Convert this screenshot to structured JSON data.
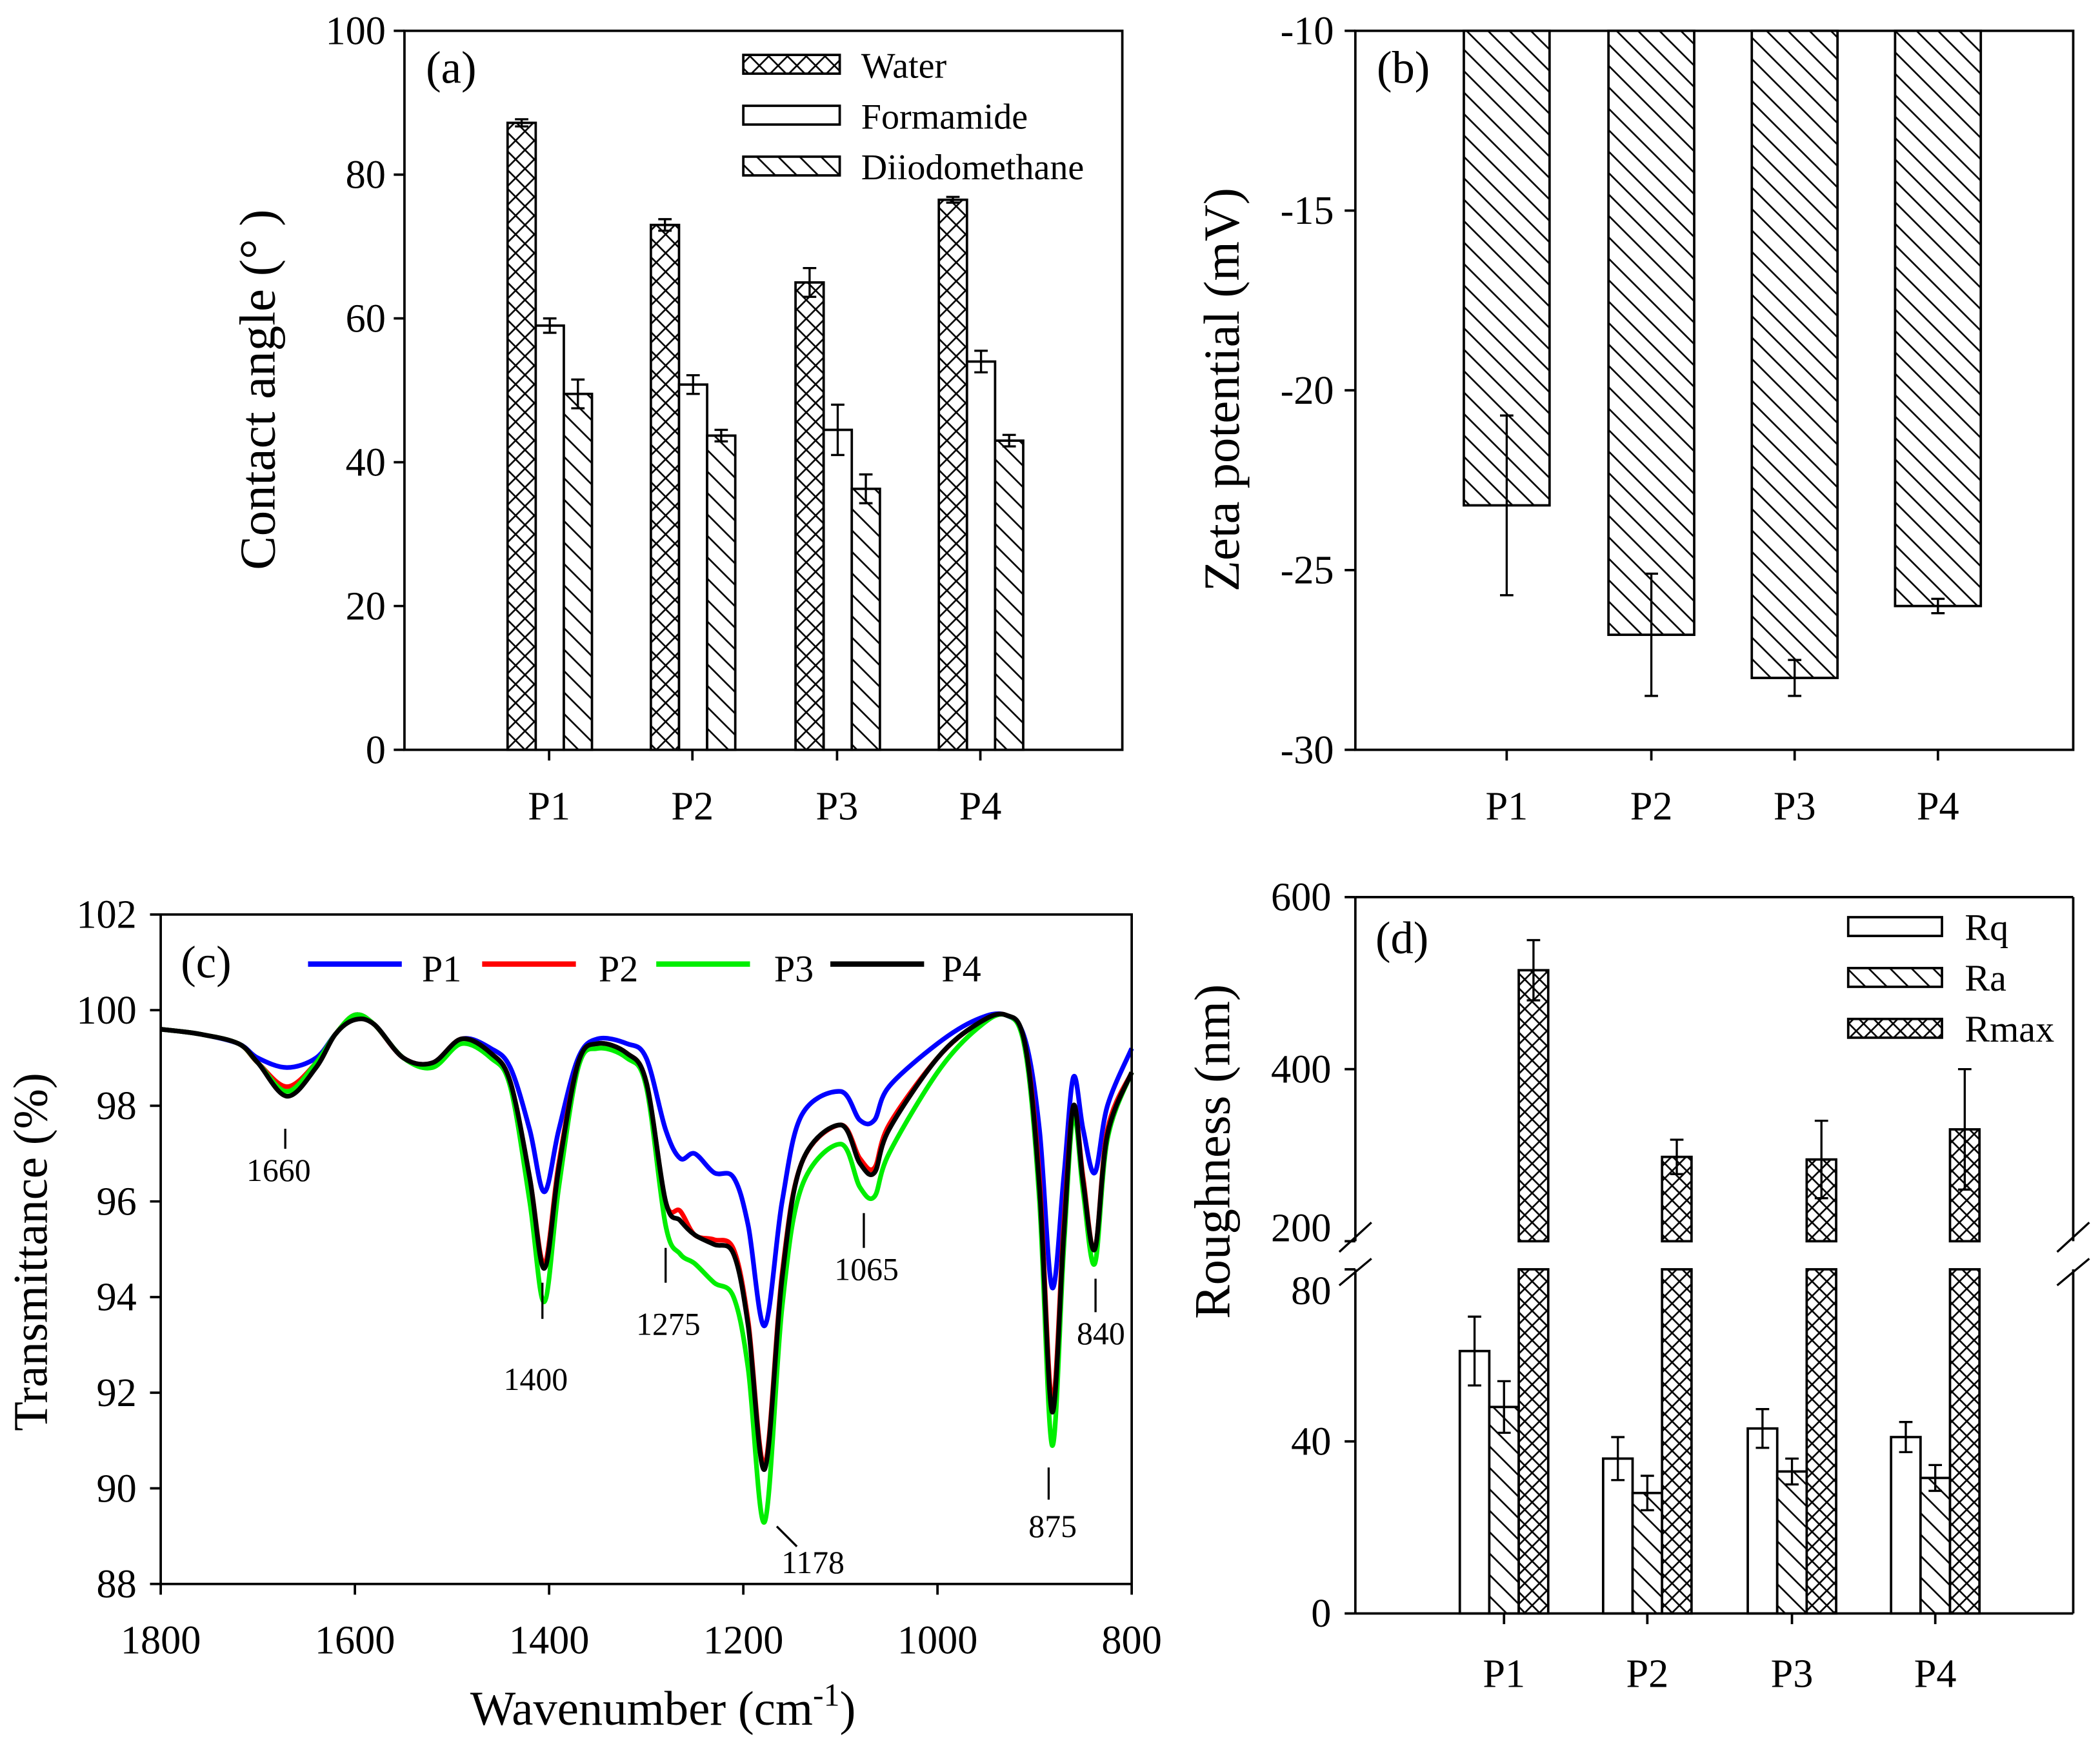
{
  "chart_data": [
    {
      "type": "bar",
      "panel_label": "(a)",
      "ylabel": "Contact angle (° )",
      "ylim": [
        0,
        100
      ],
      "yticks": [
        "0",
        "20",
        "40",
        "60",
        "80",
        "100"
      ],
      "categories": [
        "P1",
        "P2",
        "P3",
        "P4"
      ],
      "legend_position": "top-right",
      "series": [
        {
          "name": "Water",
          "pattern": "crosshatch",
          "values": [
            87.2,
            73.0,
            65.0,
            76.5
          ],
          "errors": [
            0.5,
            0.8,
            2.0,
            0.4
          ]
        },
        {
          "name": "Formamide",
          "pattern": "none",
          "values": [
            59.0,
            50.8,
            44.5,
            54.0
          ],
          "errors": [
            1.0,
            1.3,
            3.5,
            1.5
          ]
        },
        {
          "name": "Diiodomethane",
          "pattern": "diagonal",
          "values": [
            49.5,
            43.7,
            36.3,
            43.0
          ],
          "errors": [
            2.0,
            0.8,
            2.0,
            0.8
          ]
        }
      ]
    },
    {
      "type": "bar",
      "panel_label": "(b)",
      "ylabel": "Zeta potential (mV)",
      "ylim": [
        -30,
        -10
      ],
      "yticks": [
        "-10",
        "-15",
        "-20",
        "-25",
        "-30"
      ],
      "categories": [
        "P1",
        "P2",
        "P3",
        "P4"
      ],
      "series": [
        {
          "name": "Zeta potential",
          "pattern": "diagonal",
          "values": [
            -23.2,
            -26.8,
            -28.0,
            -26.0
          ],
          "errors": [
            2.5,
            1.7,
            0.5,
            0.2
          ]
        }
      ]
    },
    {
      "type": "line",
      "panel_label": "(c)",
      "xlabel": "Wavenumber (cm",
      "xlabel_sup": "-1",
      "xlabel_end": ")",
      "ylabel": "Transmittance (%)",
      "xlim": [
        1800,
        800
      ],
      "ylim": [
        88,
        102
      ],
      "xticks": [
        "1800",
        "1600",
        "1400",
        "1200",
        "1000",
        "800"
      ],
      "yticks": [
        "88",
        "90",
        "92",
        "94",
        "96",
        "98",
        "100",
        "102"
      ],
      "legend_position": "top",
      "x": [
        1800,
        1760,
        1720,
        1700,
        1670,
        1640,
        1620,
        1600,
        1580,
        1550,
        1520,
        1490,
        1460,
        1440,
        1420,
        1405,
        1390,
        1370,
        1350,
        1320,
        1300,
        1280,
        1265,
        1250,
        1230,
        1210,
        1195,
        1178,
        1160,
        1140,
        1100,
        1080,
        1065,
        1050,
        1000,
        960,
        930,
        910,
        895,
        882,
        870,
        860,
        850,
        838,
        825,
        800
      ],
      "series": [
        {
          "name": "P1",
          "color": "#0000ff",
          "values": [
            99.6,
            99.5,
            99.3,
            99.0,
            98.8,
            99.0,
            99.5,
            99.9,
            99.7,
            99.0,
            98.9,
            99.4,
            99.2,
            98.8,
            97.5,
            96.2,
            97.5,
            99.0,
            99.4,
            99.3,
            99.0,
            97.5,
            96.9,
            97.0,
            96.6,
            96.5,
            95.5,
            93.4,
            96.0,
            97.8,
            98.3,
            97.7,
            97.7,
            98.4,
            99.3,
            99.8,
            99.9,
            99.4,
            97.5,
            94.2,
            96.5,
            98.6,
            97.5,
            96.6,
            98.0,
            99.2
          ]
        },
        {
          "name": "P2",
          "color": "#ff0000",
          "values": [
            99.6,
            99.5,
            99.3,
            98.9,
            98.4,
            98.9,
            99.5,
            99.9,
            99.7,
            99.0,
            98.9,
            99.4,
            99.1,
            98.5,
            96.5,
            94.7,
            96.8,
            98.9,
            99.3,
            99.1,
            98.5,
            96.0,
            95.8,
            95.3,
            95.2,
            95.0,
            93.5,
            90.5,
            94.5,
            96.8,
            97.6,
            96.9,
            96.7,
            97.6,
            99.0,
            99.7,
            99.9,
            99.3,
            96.5,
            91.8,
            95.5,
            98.0,
            96.5,
            95.0,
            97.5,
            98.7
          ]
        },
        {
          "name": "P3",
          "color": "#00ee00",
          "values": [
            99.6,
            99.5,
            99.3,
            98.9,
            98.3,
            98.9,
            99.5,
            99.9,
            99.7,
            99.0,
            98.8,
            99.3,
            99.0,
            98.4,
            96.0,
            93.9,
            96.3,
            98.8,
            99.2,
            99.0,
            98.4,
            95.5,
            94.9,
            94.7,
            94.3,
            94.0,
            92.5,
            89.3,
            93.8,
            96.3,
            97.2,
            96.3,
            96.1,
            97.0,
            98.7,
            99.6,
            99.9,
            99.2,
            96.0,
            90.9,
            95.0,
            97.8,
            96.2,
            94.7,
            97.3,
            98.7
          ]
        },
        {
          "name": "P4",
          "color": "#000000",
          "values": [
            99.6,
            99.5,
            99.3,
            98.9,
            98.2,
            98.8,
            99.5,
            99.8,
            99.7,
            99.0,
            98.9,
            99.4,
            99.1,
            98.5,
            96.5,
            94.6,
            96.7,
            98.9,
            99.3,
            99.1,
            98.5,
            96.0,
            95.6,
            95.3,
            95.1,
            94.9,
            93.4,
            90.4,
            94.4,
            96.8,
            97.6,
            96.8,
            96.6,
            97.5,
            99.0,
            99.7,
            99.9,
            99.3,
            96.3,
            91.6,
            95.3,
            98.0,
            96.4,
            95.0,
            97.4,
            98.7
          ]
        }
      ],
      "annotations": [
        "1660",
        "1400",
        "1275",
        "1178",
        "1065",
        "875",
        "840"
      ]
    },
    {
      "type": "bar",
      "panel_label": "(d)",
      "ylabel": "Roughness (nm)",
      "broken_axis": {
        "lower": [
          0,
          80
        ],
        "upper": [
          200,
          600
        ]
      },
      "yticks_lower": [
        "0",
        "40",
        "80"
      ],
      "yticks_upper": [
        "200",
        "400",
        "600"
      ],
      "categories": [
        "P1",
        "P2",
        "P3",
        "P4"
      ],
      "legend_position": "top-right",
      "series": [
        {
          "name": "Rq",
          "pattern": "none",
          "values": [
            61,
            36,
            43,
            41
          ],
          "errors": [
            8,
            5,
            4.5,
            3.5
          ]
        },
        {
          "name": "Ra",
          "pattern": "diagonal",
          "values": [
            48,
            28,
            33,
            31.5
          ],
          "errors": [
            6,
            4,
            3,
            3
          ]
        },
        {
          "name": "Rmax",
          "pattern": "crosshatch",
          "values": [
            515,
            298,
            295,
            330
          ],
          "errors": [
            35,
            20,
            45,
            70
          ]
        }
      ]
    }
  ]
}
